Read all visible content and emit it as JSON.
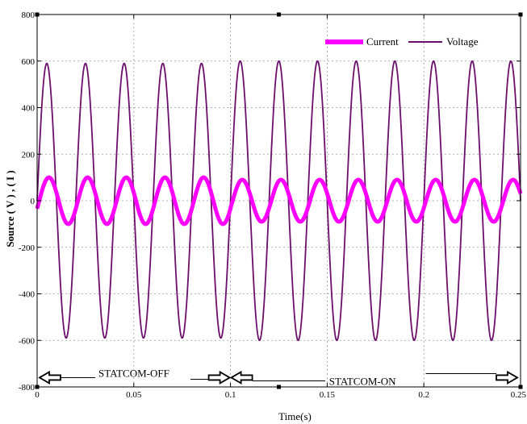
{
  "chart_data": {
    "type": "line",
    "title": "",
    "xlabel": "Time(s)",
    "ylabel": "Source ( V ) , ( I )",
    "xlim": [
      0,
      0.25
    ],
    "ylim": [
      -800,
      800
    ],
    "x_ticks": [
      0,
      0.05,
      0.1,
      0.15,
      0.2,
      0.25
    ],
    "x_tick_labels": [
      "0",
      "0.05",
      "0.1",
      "0.15",
      "0.2",
      "0.25"
    ],
    "y_ticks": [
      -800,
      -600,
      -400,
      -200,
      0,
      200,
      400,
      600,
      800
    ],
    "y_tick_labels": [
      "-800",
      "-600",
      "-400",
      "-200",
      "0",
      "200",
      "400",
      "600",
      "800"
    ],
    "grid": true,
    "legend_position": "top-right",
    "series": [
      {
        "name": "Current",
        "color": "#ff00ff",
        "waveform": "sine",
        "frequency_hz": 50,
        "x_start": 0,
        "x_end": 0.25,
        "segments": [
          {
            "x_start": 0,
            "x_end": 0.1,
            "amplitude": 100
          },
          {
            "x_start": 0.1,
            "x_end": 0.25,
            "amplitude": 90
          }
        ],
        "phase_deg": -20
      },
      {
        "name": "Voltage",
        "color": "#6b0f6b",
        "waveform": "sine",
        "frequency_hz": 50,
        "x_start": 0,
        "x_end": 0.25,
        "segments": [
          {
            "x_start": 0,
            "x_end": 0.1,
            "amplitude": 590
          },
          {
            "x_start": 0.1,
            "x_end": 0.25,
            "amplitude": 600
          }
        ],
        "phase_deg": 0
      }
    ],
    "annotations": [
      {
        "text": "STATCOM-OFF",
        "from_x": 0,
        "to_x": 0.1,
        "y": -760
      },
      {
        "text": "STATCOM-ON",
        "from_x": 0.1,
        "to_x": 0.25,
        "y": -760
      }
    ]
  }
}
